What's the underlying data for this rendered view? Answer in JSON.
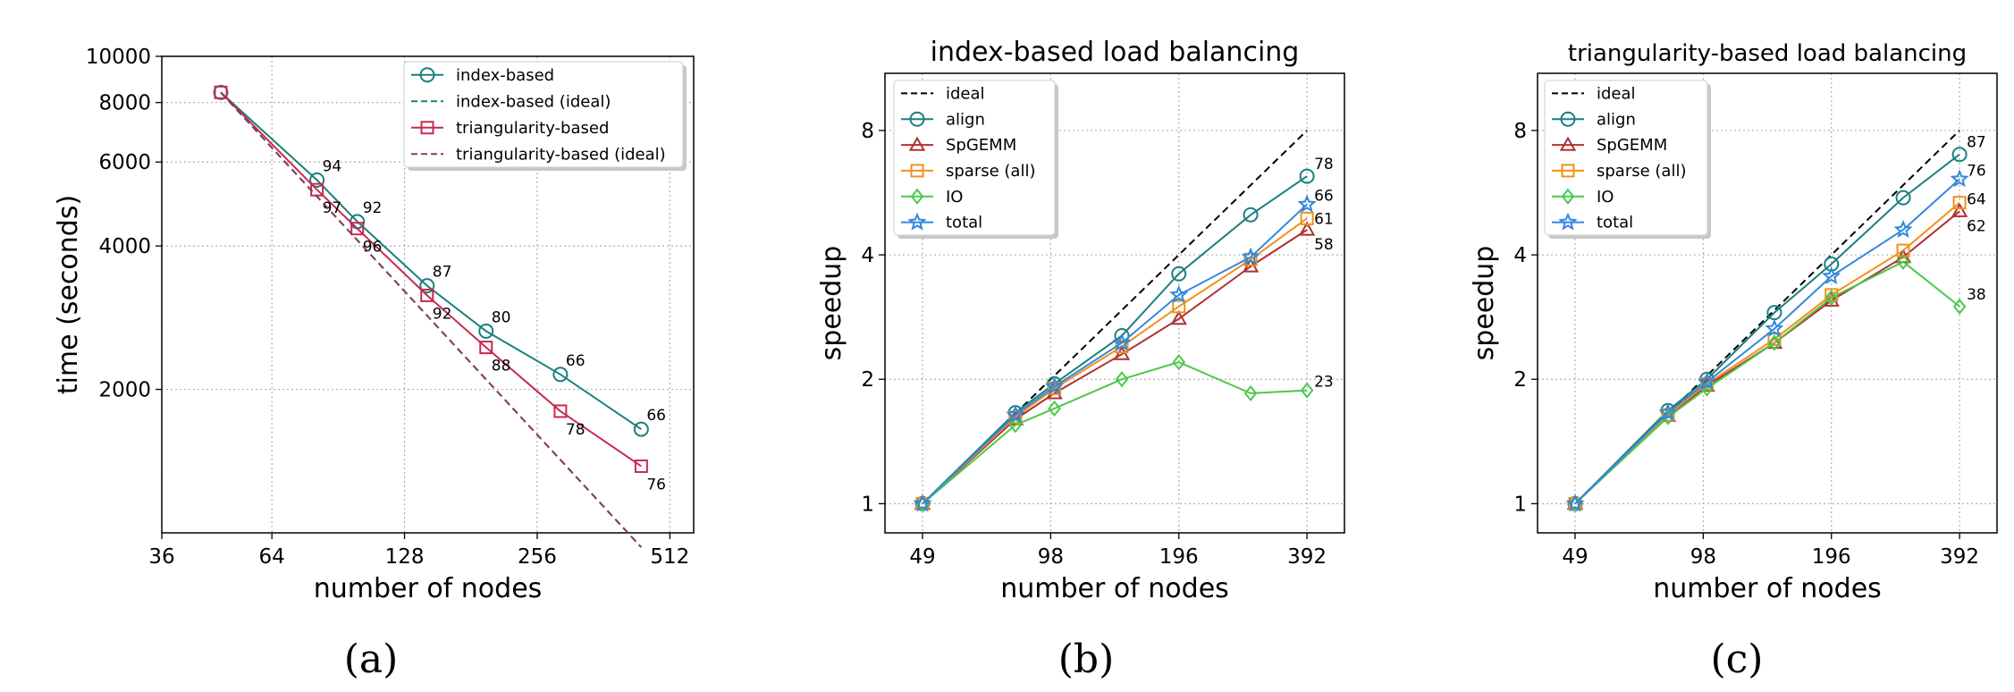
{
  "panels": [
    {
      "caption": "(a)",
      "chart_data": {
        "type": "line",
        "title": "",
        "xlabel": "number of nodes",
        "ylabel": "time (seconds)",
        "xscale": "log",
        "yscale": "log",
        "xlim": [
          36,
          580
        ],
        "ylim": [
          1000,
          10000
        ],
        "xticks": [
          36,
          64,
          128,
          256,
          512
        ],
        "xtick_labels": [
          "36",
          "64",
          "128",
          "256",
          "512"
        ],
        "yticks": [
          2000,
          4000,
          6000,
          8000,
          10000
        ],
        "ytick_labels": [
          "2000",
          "4000",
          "6000",
          "8000",
          "10000"
        ],
        "grid": true,
        "legend_position": "top-right",
        "series": [
          {
            "name": "index-based",
            "style": "solid",
            "marker": "circle",
            "color": "#1a7f7f",
            "x": [
              49,
              81,
              100,
              144,
              196,
              289,
              441
            ],
            "y": [
              8400,
              5500,
              4500,
              3300,
              2650,
              2150,
              1650
            ],
            "labels": [
              "",
              "94",
              "92",
              "87",
              "80",
              "66",
              "66"
            ],
            "label_side": "above"
          },
          {
            "name": "index-based (ideal)",
            "style": "dashed",
            "marker": "none",
            "color": "#1a7f7f",
            "x": [
              49,
              441
            ],
            "y": [
              8400,
              933
            ]
          },
          {
            "name": "triangularity-based",
            "style": "solid",
            "marker": "square",
            "color": "#c8294f",
            "x": [
              49,
              81,
              100,
              144,
              196,
              289,
              441
            ],
            "y": [
              8400,
              5250,
              4350,
              3150,
              2450,
              1800,
              1380
            ],
            "labels": [
              "",
              "97",
              "96",
              "92",
              "88",
              "78",
              "76"
            ],
            "label_side": "below"
          },
          {
            "name": "triangularity-based (ideal)",
            "style": "dashed",
            "marker": "none",
            "color": "#8b3a5a",
            "x": [
              49,
              441
            ],
            "y": [
              8400,
              933
            ]
          }
        ]
      }
    },
    {
      "caption": "(b)",
      "chart_data": {
        "type": "line",
        "title": "index-based load balancing",
        "xlabel": "number of nodes",
        "ylabel": "speedup",
        "xscale": "log",
        "yscale": "log",
        "xlim": [
          40,
          480
        ],
        "ylim": [
          0.85,
          11
        ],
        "xticks": [
          49,
          98,
          196,
          392
        ],
        "xtick_labels": [
          "49",
          "98",
          "196",
          "392"
        ],
        "yticks": [
          1,
          2,
          4,
          8
        ],
        "ytick_labels": [
          "1",
          "2",
          "4",
          "8"
        ],
        "grid": true,
        "legend_position": "top-left",
        "series": [
          {
            "name": "ideal",
            "style": "dashed",
            "marker": "none",
            "color": "#000000",
            "x": [
              49,
              392
            ],
            "y": [
              1,
              8
            ]
          },
          {
            "name": "align",
            "style": "solid",
            "marker": "circle",
            "color": "#1a7f7f",
            "x": [
              49,
              81,
              100,
              144,
              196,
              289,
              392
            ],
            "y": [
              1,
              1.66,
              1.95,
              2.55,
              3.6,
              5.0,
              6.2
            ],
            "end_label": "78"
          },
          {
            "name": "SpGEMM",
            "style": "solid",
            "marker": "triangle",
            "color": "#b03030",
            "x": [
              49,
              81,
              100,
              144,
              196,
              289,
              392
            ],
            "y": [
              1,
              1.6,
              1.85,
              2.3,
              2.8,
              3.75,
              4.6
            ],
            "end_label": "58"
          },
          {
            "name": "sparse (all)",
            "style": "solid",
            "marker": "square",
            "color": "#f0901a",
            "x": [
              49,
              81,
              100,
              144,
              196,
              289,
              392
            ],
            "y": [
              1,
              1.62,
              1.9,
              2.4,
              3.0,
              3.9,
              4.9
            ],
            "end_label": "61"
          },
          {
            "name": "IO",
            "style": "solid",
            "marker": "diamond",
            "color": "#4cc84c",
            "x": [
              49,
              81,
              100,
              144,
              196,
              289,
              392
            ],
            "y": [
              1,
              1.55,
              1.7,
              2.0,
              2.2,
              1.85,
              1.88
            ],
            "end_label": "23"
          },
          {
            "name": "total",
            "style": "solid",
            "marker": "star",
            "color": "#3388dd",
            "x": [
              49,
              81,
              100,
              144,
              196,
              289,
              392
            ],
            "y": [
              1,
              1.64,
              1.92,
              2.45,
              3.2,
              3.95,
              5.3
            ],
            "end_label": "66"
          }
        ]
      }
    },
    {
      "caption": "(c)",
      "chart_data": {
        "type": "line",
        "title": "triangularity-based load balancing",
        "xlabel": "number of nodes",
        "ylabel": "speedup",
        "xscale": "log",
        "yscale": "log",
        "xlim": [
          40,
          480
        ],
        "ylim": [
          0.85,
          11
        ],
        "xticks": [
          49,
          98,
          196,
          392
        ],
        "xtick_labels": [
          "49",
          "98",
          "196",
          "392"
        ],
        "yticks": [
          1,
          2,
          4,
          8
        ],
        "ytick_labels": [
          "1",
          "2",
          "4",
          "8"
        ],
        "grid": true,
        "legend_position": "top-left",
        "series": [
          {
            "name": "ideal",
            "style": "dashed",
            "marker": "none",
            "color": "#000000",
            "x": [
              49,
              392
            ],
            "y": [
              1,
              8
            ]
          },
          {
            "name": "align",
            "style": "solid",
            "marker": "circle",
            "color": "#1a7f7f",
            "x": [
              49,
              81,
              100,
              144,
              196,
              289,
              392
            ],
            "y": [
              1,
              1.68,
              2.0,
              2.9,
              3.8,
              5.5,
              7.0
            ],
            "end_label": "87"
          },
          {
            "name": "SpGEMM",
            "style": "solid",
            "marker": "triangle",
            "color": "#b03030",
            "x": [
              49,
              81,
              100,
              144,
              196,
              289,
              392
            ],
            "y": [
              1,
              1.63,
              1.93,
              2.45,
              3.1,
              3.95,
              5.1
            ],
            "end_label": "62"
          },
          {
            "name": "sparse (all)",
            "style": "solid",
            "marker": "square",
            "color": "#f0901a",
            "x": [
              49,
              81,
              100,
              144,
              196,
              289,
              392
            ],
            "y": [
              1,
              1.64,
              1.95,
              2.5,
              3.2,
              4.1,
              5.35
            ],
            "end_label": "64"
          },
          {
            "name": "IO",
            "style": "solid",
            "marker": "diamond",
            "color": "#4cc84c",
            "x": [
              49,
              81,
              100,
              144,
              196,
              289,
              392
            ],
            "y": [
              1,
              1.62,
              1.9,
              2.45,
              3.15,
              3.85,
              3.0
            ],
            "end_label": "38"
          },
          {
            "name": "total",
            "style": "solid",
            "marker": "star",
            "color": "#3388dd",
            "x": [
              49,
              81,
              100,
              144,
              196,
              289,
              392
            ],
            "y": [
              1,
              1.66,
              1.97,
              2.65,
              3.55,
              4.6,
              6.1
            ],
            "end_label": "76"
          }
        ]
      }
    }
  ]
}
